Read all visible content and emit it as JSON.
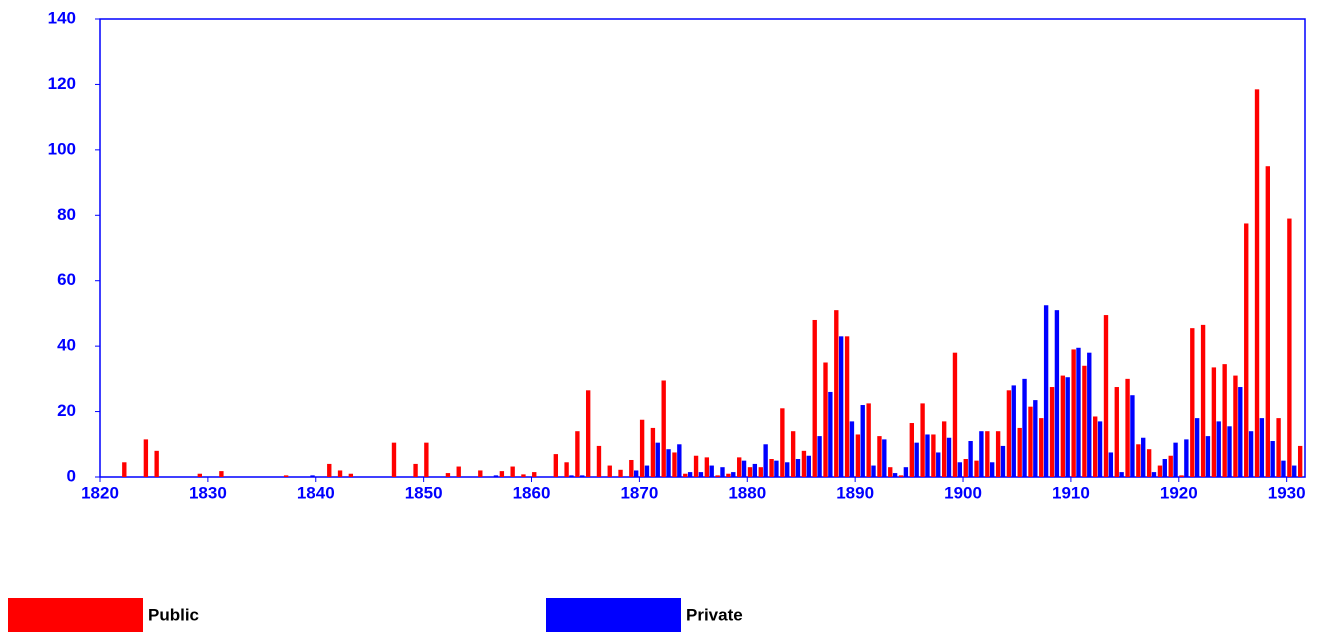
{
  "chart_data": {
    "type": "bar",
    "x": [
      1820,
      1821,
      1822,
      1823,
      1824,
      1825,
      1826,
      1827,
      1828,
      1829,
      1830,
      1831,
      1832,
      1833,
      1834,
      1835,
      1836,
      1837,
      1838,
      1839,
      1840,
      1841,
      1842,
      1843,
      1844,
      1845,
      1846,
      1847,
      1848,
      1849,
      1850,
      1851,
      1852,
      1853,
      1854,
      1855,
      1856,
      1857,
      1858,
      1859,
      1860,
      1861,
      1862,
      1863,
      1864,
      1865,
      1866,
      1867,
      1868,
      1869,
      1870,
      1871,
      1872,
      1873,
      1874,
      1875,
      1876,
      1877,
      1878,
      1879,
      1880,
      1881,
      1882,
      1883,
      1884,
      1885,
      1886,
      1887,
      1888,
      1889,
      1890,
      1891,
      1892,
      1893,
      1894,
      1895,
      1896,
      1897,
      1898,
      1899,
      1900,
      1901,
      1902,
      1903,
      1904,
      1905,
      1906,
      1907,
      1908,
      1909,
      1910,
      1911,
      1912,
      1913,
      1914,
      1915,
      1916,
      1917,
      1918,
      1919,
      1920,
      1921,
      1922,
      1923,
      1924,
      1925,
      1926,
      1927,
      1928,
      1929,
      1930,
      1931
    ],
    "series": [
      {
        "name": "Public",
        "color": "#ff0000",
        "values": [
          0,
          0,
          4.5,
          0,
          11.5,
          8,
          0,
          0,
          0,
          1,
          0,
          1.8,
          0,
          0,
          0,
          0,
          0,
          0.5,
          0,
          0,
          0,
          4,
          2,
          1,
          0,
          0,
          0,
          10.5,
          0,
          4,
          10.5,
          0,
          1.2,
          3.2,
          0,
          2,
          0,
          1.8,
          3.2,
          0.8,
          1.5,
          0,
          7,
          4.5,
          14,
          26.5,
          9.5,
          3.5,
          2.2,
          5.2,
          17.5,
          15,
          29.5,
          7.5,
          1,
          6.5,
          6,
          0.5,
          1,
          6,
          3,
          3,
          5.5,
          21,
          14,
          8,
          48,
          35,
          51,
          43,
          13,
          22.5,
          12.5,
          3,
          0.5,
          16.5,
          22.5,
          13,
          17,
          38,
          5.5,
          5,
          14,
          14,
          26.5,
          15,
          21.5,
          18,
          27.5,
          31,
          39,
          34,
          18.5,
          49.5,
          27.5,
          30,
          10,
          8.5,
          3.5,
          6.5,
          0.5,
          45.5,
          46.5,
          33.5,
          34.5,
          31,
          77.5,
          118.5,
          95,
          18,
          79,
          9.5
        ]
      },
      {
        "name": "Private",
        "color": "#0000ff",
        "values": [
          0,
          0,
          0,
          0,
          0,
          0,
          0,
          0,
          0,
          0,
          0,
          0,
          0,
          0,
          0,
          0,
          0,
          0,
          0,
          0.5,
          0,
          0,
          0,
          0,
          0,
          0,
          0,
          0,
          0,
          0,
          0,
          0,
          0,
          0,
          0,
          0,
          0.5,
          0,
          0,
          0,
          0,
          0,
          0,
          0.5,
          0.5,
          0,
          0,
          0,
          0,
          2,
          3.5,
          10.5,
          8.5,
          10,
          1.5,
          1.5,
          3.5,
          3,
          1.5,
          5,
          4,
          10,
          5,
          4.5,
          5.5,
          6.5,
          12.5,
          26,
          43,
          17,
          22,
          3.5,
          11.5,
          1.2,
          3,
          10.5,
          13,
          7.5,
          12,
          4.5,
          11,
          14,
          4.5,
          9.5,
          28,
          30,
          23.5,
          52.5,
          51,
          30.5,
          39.5,
          38,
          17,
          7.5,
          1.5,
          25,
          12,
          1.5,
          5.5,
          10.5,
          11.5,
          18,
          12.5,
          17,
          15.5,
          27.5,
          14,
          18,
          11,
          5,
          3.5,
          0
        ]
      }
    ],
    "xlim": [
      1820,
      1931.7
    ],
    "xticks": [
      1820,
      1830,
      1840,
      1850,
      1860,
      1870,
      1880,
      1890,
      1900,
      1910,
      1920,
      1930
    ],
    "ylim": [
      0,
      140
    ],
    "yticks": [
      0,
      20,
      40,
      60,
      80,
      100,
      120,
      140
    ]
  }
}
